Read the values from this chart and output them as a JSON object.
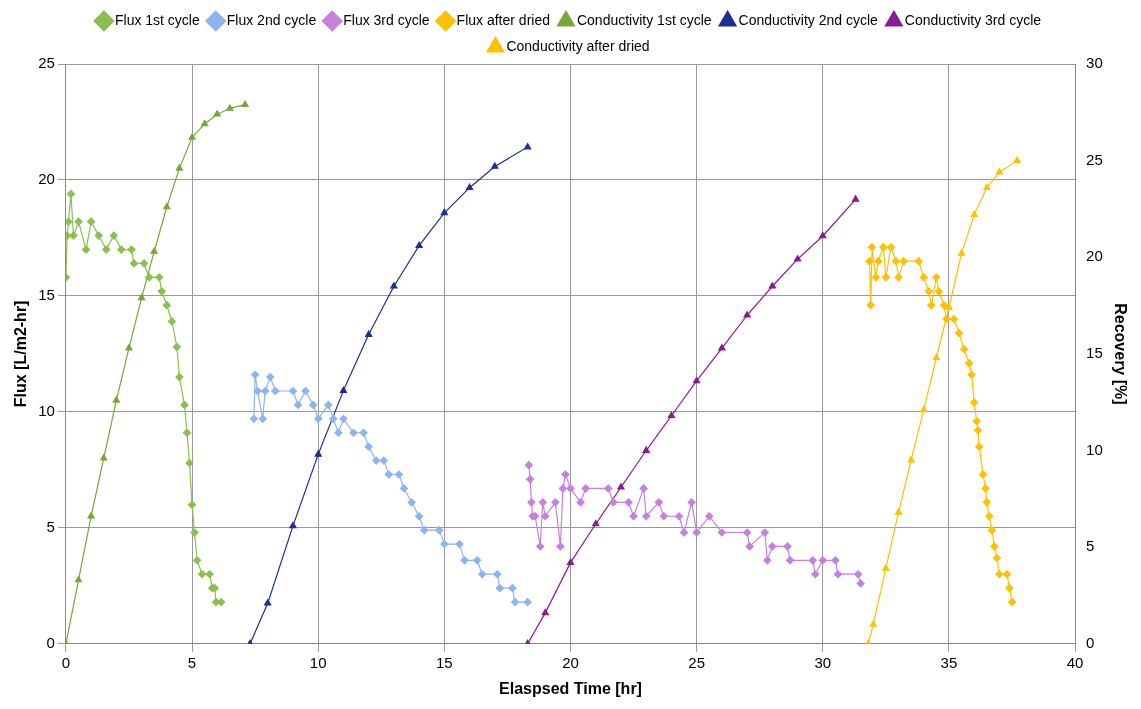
{
  "chart_data": {
    "type": "line",
    "xlabel": "Elaspsed Time [hr]",
    "ylabel": "Flux [L/m2-hr]",
    "y2label": "Recovery [%]",
    "xlim": [
      0,
      40
    ],
    "xticks": [
      0,
      5,
      10,
      15,
      20,
      25,
      30,
      35,
      40
    ],
    "ylim": [
      0,
      25
    ],
    "yticks": [
      0,
      5,
      10,
      15,
      20,
      25
    ],
    "y2lim": [
      0,
      30
    ],
    "y2ticks": [
      0,
      5,
      10,
      15,
      20,
      25,
      30
    ],
    "grid": true,
    "legend": "top",
    "line_style": "solid",
    "series": [
      {
        "name": "Flux 1st cycle",
        "color": "#8cbf4f",
        "marker": "diamond",
        "x": [
          0,
          0.05,
          0.1,
          0.2,
          0.3,
          0.5,
          0.8,
          1,
          1.3,
          1.6,
          1.9,
          2.2,
          2.6,
          2.7,
          3.1,
          3.3,
          3.7,
          3.8,
          4.0,
          4.2,
          4.4,
          4.5,
          4.7,
          4.8,
          4.9,
          5.0,
          5.1,
          5.2,
          5.4,
          5.7,
          5.8,
          5.9,
          5.95,
          6.15
        ],
        "values": [
          15.8,
          17.6,
          18.2,
          19.4,
          17.6,
          18.2,
          17.0,
          18.2,
          17.6,
          17.0,
          17.6,
          17.0,
          17.0,
          16.4,
          16.4,
          15.8,
          15.8,
          15.2,
          14.6,
          13.9,
          12.8,
          11.5,
          10.3,
          9.1,
          7.8,
          6.0,
          4.8,
          3.6,
          3.0,
          3.0,
          2.4,
          2.4,
          1.8,
          1.8
        ]
      },
      {
        "name": "Flux 2nd cycle",
        "color": "#8db4f0",
        "marker": "diamond",
        "x": [
          7.45,
          7.5,
          7.6,
          7.8,
          7.9,
          8.1,
          8.3,
          9,
          9.2,
          9.5,
          9.8,
          10,
          10.4,
          10.6,
          10.8,
          11.0,
          11.4,
          11.8,
          12.0,
          12.3,
          12.6,
          12.8,
          13.2,
          13.4,
          13.7,
          14.0,
          14.2,
          14.8,
          15.0,
          15.6,
          15.8,
          16.3,
          16.5,
          17.1,
          17.2,
          17.7,
          17.8,
          18.3
        ],
        "values": [
          9.7,
          11.6,
          10.9,
          9.7,
          10.9,
          11.5,
          10.9,
          10.9,
          10.3,
          10.9,
          10.3,
          9.7,
          10.3,
          9.7,
          9.1,
          9.7,
          9.1,
          9.1,
          8.5,
          7.9,
          7.9,
          7.3,
          7.3,
          6.7,
          6.1,
          5.5,
          4.9,
          4.9,
          4.3,
          4.3,
          3.6,
          3.6,
          3.0,
          3.0,
          2.4,
          2.4,
          1.8,
          1.8
        ]
      },
      {
        "name": "Flux 3rd cycle",
        "color": "#c580e0",
        "marker": "diamond",
        "x": [
          18.35,
          18.4,
          18.45,
          18.5,
          18.6,
          18.8,
          18.9,
          19,
          19.4,
          19.6,
          19.7,
          19.8,
          20,
          20.4,
          20.6,
          21.5,
          21.7,
          22.3,
          22.5,
          22.9,
          23,
          23.5,
          23.7,
          24.3,
          24.5,
          24.8,
          25,
          25.5,
          26,
          27,
          27.1,
          27.7,
          27.8,
          28,
          28.6,
          28.7,
          29.6,
          29.7,
          30,
          30.5,
          30.6,
          31.4,
          31.5
        ],
        "values": [
          7.7,
          7.1,
          6.1,
          5.5,
          5.5,
          4.2,
          6.1,
          5.5,
          6.1,
          4.2,
          6.7,
          7.3,
          6.7,
          6.1,
          6.7,
          6.7,
          6.1,
          6.1,
          5.5,
          6.7,
          5.5,
          6.1,
          5.5,
          5.5,
          4.8,
          6.1,
          4.8,
          5.5,
          4.8,
          4.8,
          4.2,
          4.8,
          3.6,
          4.2,
          4.2,
          3.6,
          3.6,
          3.0,
          3.6,
          3.6,
          3.0,
          3.0,
          2.6
        ]
      },
      {
        "name": "Flux after dried",
        "color": "#ffc000",
        "marker": "diamond",
        "x": [
          31.85,
          31.9,
          31.95,
          32.1,
          32.2,
          32.4,
          32.5,
          32.7,
          32.9,
          33.0,
          33.2,
          33.8,
          34.0,
          34.2,
          34.3,
          34.5,
          34.6,
          34.8,
          34.9,
          35.2,
          35.4,
          35.6,
          35.8,
          35.9,
          36.0,
          36.1,
          36.15,
          36.2,
          36.35,
          36.45,
          36.5,
          36.6,
          36.7,
          36.8,
          36.9,
          37.0,
          37.3,
          37.4,
          37.5
        ],
        "values": [
          16.5,
          14.6,
          17.1,
          15.8,
          16.5,
          17.1,
          15.8,
          17.1,
          16.5,
          15.8,
          16.5,
          16.5,
          15.8,
          15.2,
          14.6,
          15.8,
          15.2,
          14.6,
          14.0,
          14.0,
          13.4,
          12.7,
          12.1,
          11.6,
          10.4,
          9.6,
          9.2,
          8.5,
          7.3,
          6.7,
          6.1,
          5.5,
          4.9,
          4.2,
          3.7,
          3.0,
          3.0,
          2.4,
          1.8
        ]
      },
      {
        "name": "Conductivity 1st cycle",
        "color": "#77a63a",
        "marker": "triangle",
        "axis": "y2",
        "x": [
          0,
          0.5,
          1,
          1.5,
          2,
          2.5,
          3,
          3.5,
          4,
          4.5,
          5,
          5.5,
          6,
          6.5,
          7.1
        ],
        "values": [
          0,
          3.3,
          6.6,
          9.6,
          12.6,
          15.3,
          17.9,
          20.3,
          22.6,
          24.6,
          26.2,
          26.9,
          27.4,
          27.7,
          27.9
        ]
      },
      {
        "name": "Conductivity 2nd cycle",
        "color": "#1f2d9a",
        "marker": "triangle",
        "axis": "y2",
        "x": [
          7.3,
          8,
          9,
          10,
          11,
          12,
          13,
          14,
          15,
          16,
          17,
          18.3
        ],
        "values": [
          0,
          2.1,
          6.1,
          9.8,
          13.1,
          16.0,
          18.5,
          20.6,
          22.3,
          23.6,
          24.7,
          25.7
        ]
      },
      {
        "name": "Conductivity 3rd cycle",
        "color": "#8a1a8f",
        "marker": "triangle",
        "axis": "y2",
        "x": [
          18.3,
          19,
          20,
          21,
          22,
          23,
          24,
          25,
          26,
          27,
          28,
          29,
          30,
          31.3
        ],
        "values": [
          0,
          1.6,
          4.2,
          6.2,
          8.1,
          10.0,
          11.8,
          13.6,
          15.3,
          17.0,
          18.5,
          19.9,
          21.1,
          23.0
        ]
      },
      {
        "name": "Conductivity after dried",
        "color": "#ffc000",
        "marker": "triangle",
        "axis": "y2",
        "x": [
          31.8,
          32,
          32.5,
          33,
          33.5,
          34,
          34.5,
          35,
          35.5,
          36,
          36.5,
          37,
          37.7
        ],
        "values": [
          0,
          1.0,
          3.9,
          6.8,
          9.5,
          12.1,
          14.8,
          17.4,
          20.2,
          22.2,
          23.6,
          24.4,
          25.0
        ]
      }
    ]
  }
}
